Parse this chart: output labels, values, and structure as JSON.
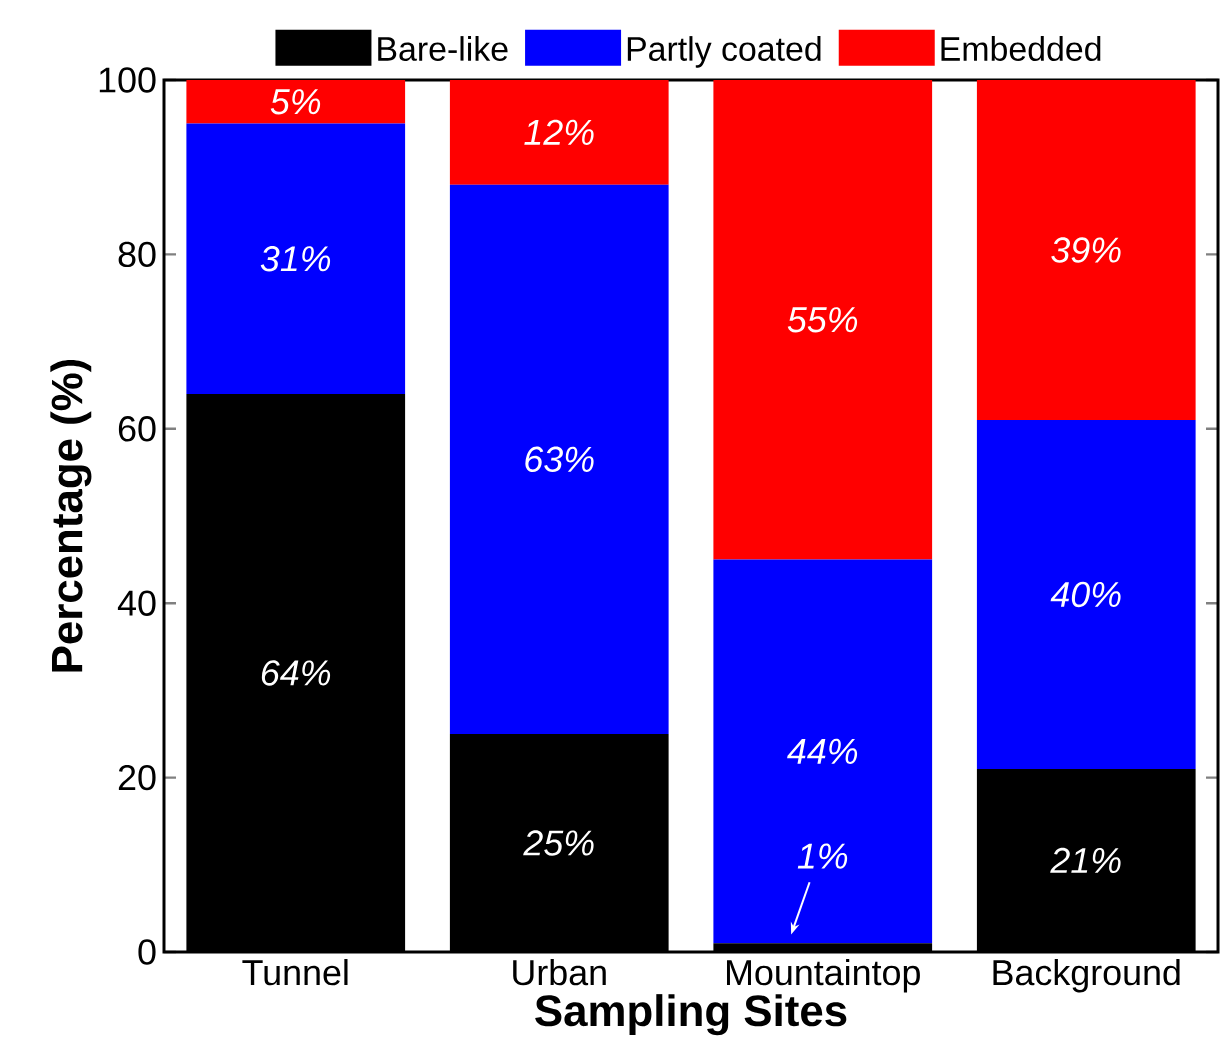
{
  "chart_data": {
    "type": "bar",
    "stacked": true,
    "xlabel": "Sampling Sites",
    "ylabel": "Percentage (%)",
    "categories": [
      "Tunnel",
      "Urban",
      "Mountaintop",
      "Background"
    ],
    "series": [
      {
        "name": "Bare-like",
        "color": "#000000",
        "values": [
          64,
          25,
          1,
          21
        ],
        "value_labels": [
          "64%",
          "25%",
          "1%",
          "21%"
        ]
      },
      {
        "name": "Partly coated",
        "color": "#0000ff",
        "values": [
          31,
          63,
          44,
          40
        ],
        "value_labels": [
          "31%",
          "63%",
          "44%",
          "40%"
        ]
      },
      {
        "name": "Embedded",
        "color": "#ff0000",
        "values": [
          5,
          12,
          55,
          39
        ],
        "value_labels": [
          "5%",
          "12%",
          "55%",
          "39%"
        ]
      }
    ],
    "ylim": [
      0,
      100
    ],
    "yticks": [
      0,
      20,
      40,
      60,
      80,
      100
    ],
    "legend": "top"
  }
}
